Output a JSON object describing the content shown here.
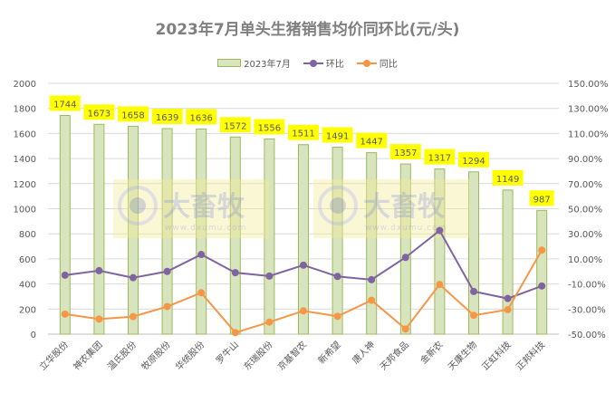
{
  "chart_data": {
    "type": "bar+line",
    "title": "2023年7月单头生猪销售均价同环比(元/头)",
    "categories": [
      "立华股份",
      "神农集团",
      "温氏股份",
      "牧原股份",
      "华统股份",
      "罗牛山",
      "东瑞股份",
      "京基智农",
      "新希望",
      "唐人神",
      "天邦食品",
      "金新农",
      "天康生物",
      "正虹科技",
      "正邦科技"
    ],
    "series": [
      {
        "name": "2023年7月",
        "type": "bar",
        "axis": "left",
        "color": "#d7e4bd",
        "border": "#9bbb59",
        "values": [
          1744,
          1673,
          1658,
          1639,
          1636,
          1572,
          1556,
          1511,
          1491,
          1447,
          1357,
          1317,
          1294,
          1149,
          987
        ]
      },
      {
        "name": "环比",
        "type": "line",
        "axis": "right",
        "color": "#8064a2",
        "unit": "%",
        "values": [
          -3.0,
          0.6,
          -5.0,
          0.0,
          13.5,
          -1.0,
          -3.7,
          5.0,
          -4.0,
          -6.6,
          11.2,
          32.6,
          -16.0,
          -21.6,
          -11.6
        ]
      },
      {
        "name": "同比",
        "type": "line",
        "axis": "right",
        "color": "#f79646",
        "unit": "%",
        "values": [
          -34.0,
          -38.0,
          -36.0,
          -28.0,
          -17.0,
          -48.8,
          -40.4,
          -31.4,
          -35.8,
          -23.0,
          -45.9,
          -10.4,
          -35.0,
          -30.5,
          17.0
        ]
      }
    ],
    "xlabel": "",
    "ylabel": "",
    "y_left": {
      "range": [
        0,
        2000
      ],
      "ticks": [
        "0",
        "200",
        "400",
        "600",
        "800",
        "1000",
        "1200",
        "1400",
        "1600",
        "1800",
        "2000"
      ]
    },
    "y_right": {
      "range": [
        -50,
        150
      ],
      "ticks": [
        "-50.00%",
        "-30.00%",
        "-10.00%",
        "10.00%",
        "30.00%",
        "50.00%",
        "70.00%",
        "90.00%",
        "110.00%",
        "130.00%",
        "150.00%"
      ]
    },
    "grid": true,
    "legend_position": "top",
    "data_labels": {
      "series": "2023年7月",
      "background": "#ffff00"
    }
  },
  "legend": {
    "items": [
      {
        "label": "2023年7月",
        "color": "#9bbb59"
      },
      {
        "label": "环比",
        "color": "#8064a2"
      },
      {
        "label": "同比",
        "color": "#f79646"
      }
    ]
  },
  "watermark": {
    "name": "大畜牧",
    "url_text": "www.dxumu.com"
  }
}
